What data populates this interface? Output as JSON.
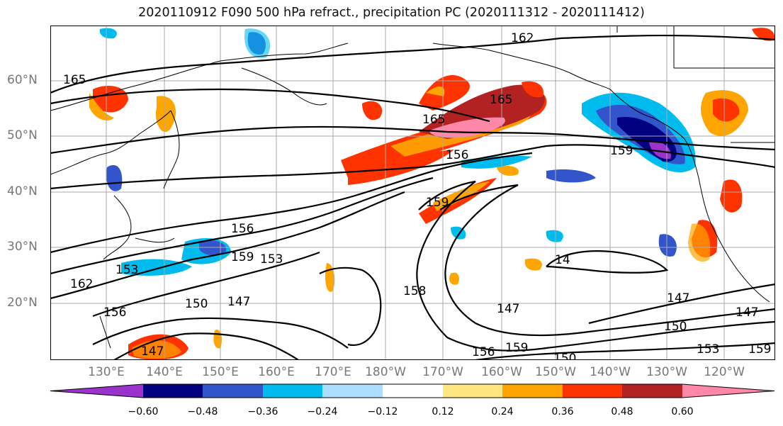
{
  "title": "2020110912 F090 500 hPa refract., precipitation PC (2020111312 - 2020111412)",
  "latitude_labels": [
    "60°N",
    "50°N",
    "40°N",
    "30°N",
    "20°N"
  ],
  "longitude_labels": [
    "130°E",
    "140°E",
    "150°E",
    "160°E",
    "170°E",
    "180°W",
    "170°W",
    "160°W",
    "150°W",
    "140°W",
    "130°W",
    "120°W"
  ],
  "contour_labels": [
    "162",
    "165",
    "165",
    "165",
    "156",
    "159",
    "159",
    "156",
    "159",
    "153",
    "153",
    "162",
    "156",
    "150",
    "147",
    "158",
    "147",
    "14",
    "156",
    "159",
    "150",
    "147",
    "150",
    "153",
    "159",
    "147",
    "147"
  ],
  "colorbar": {
    "ticks": [
      "−0.60",
      "−0.48",
      "−0.36",
      "−0.24",
      "−0.12",
      "0.12",
      "0.24",
      "0.36",
      "0.48",
      "0.60"
    ],
    "colors": [
      "#9933cc",
      "#000080",
      "#3355cc",
      "#00bbee",
      "#aaddff",
      "#ffffff",
      "#ffe680",
      "#ffa500",
      "#ff3300",
      "#b22222",
      "#ff88aa"
    ]
  }
}
